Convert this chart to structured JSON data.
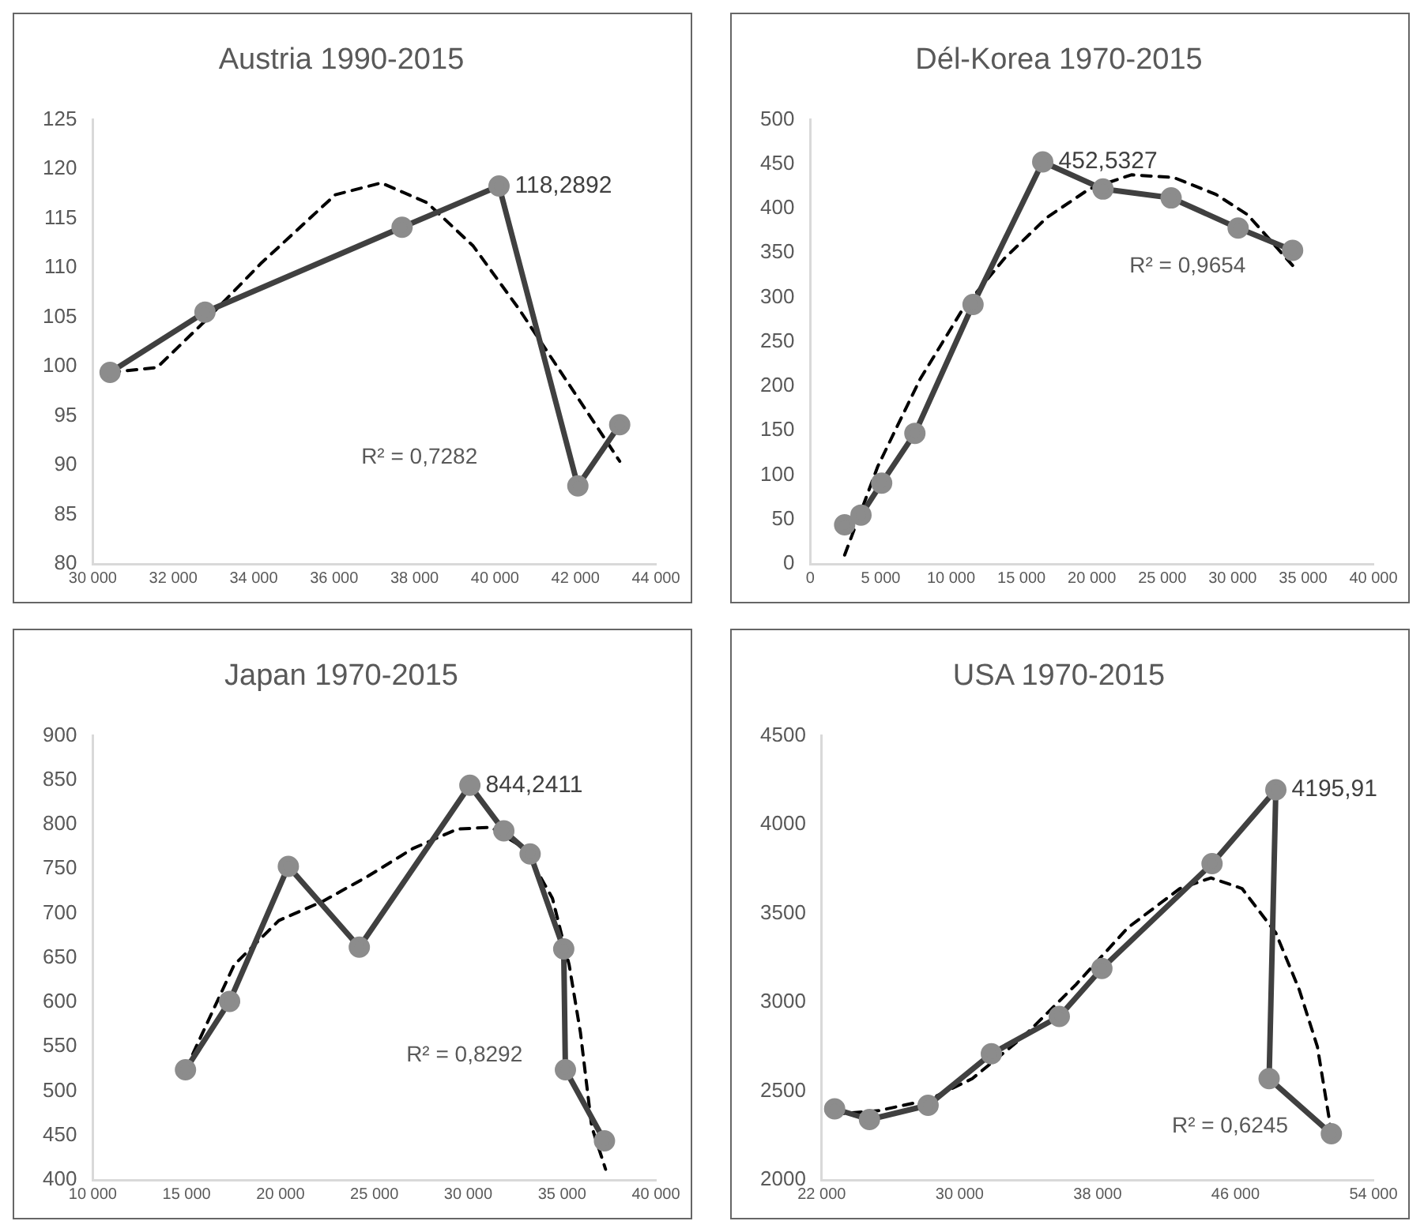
{
  "chart_data": [
    {
      "type": "line",
      "title": "Austria 1990-2015",
      "xlim": [
        30000,
        44000
      ],
      "xticks": [
        {
          "value": 30000,
          "label": "30 000"
        },
        {
          "value": 32000,
          "label": "32 000"
        },
        {
          "value": 34000,
          "label": "34 000"
        },
        {
          "value": 36000,
          "label": "36 000"
        },
        {
          "value": 38000,
          "label": "38 000"
        },
        {
          "value": 40000,
          "label": "40 000"
        },
        {
          "value": 42000,
          "label": "42 000"
        },
        {
          "value": 44000,
          "label": "44 000"
        }
      ],
      "ylim": [
        80,
        125
      ],
      "yticks": [
        80,
        85,
        90,
        95,
        100,
        105,
        110,
        115,
        120,
        125
      ],
      "grid": false,
      "legend": false,
      "annotations": [
        "R² = 0,7282"
      ],
      "series": [
        {
          "type": "line",
          "color": "#404040",
          "marker": "circle",
          "line_style": "solid",
          "x": [
            30430,
            32790,
            37690,
            40100,
            42060,
            43100
          ],
          "values": [
            99.4,
            105.5,
            114.1,
            118.2892,
            87.9,
            94.1
          ],
          "value_labels": [
            null,
            null,
            null,
            "118,2892",
            null,
            null
          ]
        },
        {
          "type": "line",
          "color": "#000000",
          "marker": "none",
          "line_style": "dashed",
          "x": [
            30430,
            31600,
            32790,
            34170,
            36030,
            37170,
            38310,
            39460,
            40600,
            41740,
            43100
          ],
          "values": [
            99.4,
            99.9,
            104.6,
            110.4,
            117.4,
            118.6,
            116.6,
            112.2,
            105.8,
            98.8,
            90.4
          ]
        }
      ]
    },
    {
      "type": "line",
      "title": "Dél-Korea 1970-2015",
      "xlim": [
        0,
        40000
      ],
      "xticks": [
        0,
        {
          "value": 5000,
          "label": "5 000"
        },
        {
          "value": 10000,
          "label": "10 000"
        },
        {
          "value": 15000,
          "label": "15 000"
        },
        {
          "value": 20000,
          "label": "20 000"
        },
        {
          "value": 25000,
          "label": "25 000"
        },
        {
          "value": 30000,
          "label": "30 000"
        },
        {
          "value": 35000,
          "label": "35 000"
        },
        {
          "value": 40000,
          "label": "40 000"
        }
      ],
      "ylim": [
        0,
        500
      ],
      "yticks": [
        0,
        50,
        100,
        150,
        200,
        250,
        300,
        350,
        400,
        450,
        500
      ],
      "grid": false,
      "legend": false,
      "annotations": [
        "R² = 0,9654"
      ],
      "series": [
        {
          "type": "line",
          "color": "#404040",
          "marker": "circle",
          "line_style": "solid",
          "x": [
            2440,
            3600,
            5070,
            7430,
            11560,
            16510,
            20790,
            25630,
            30390,
            34260
          ],
          "values": [
            44,
            55,
            91,
            147,
            292,
            452.5327,
            422,
            412,
            378,
            353
          ],
          "value_labels": [
            null,
            null,
            null,
            null,
            null,
            "452,5327",
            null,
            null,
            null,
            null
          ]
        },
        {
          "type": "line",
          "color": "#000000",
          "marker": "none",
          "line_style": "dashed",
          "x": [
            2440,
            4800,
            7800,
            10800,
            13800,
            16810,
            19810,
            22810,
            25810,
            28810,
            31070,
            34260
          ],
          "values": [
            10,
            110,
            208,
            286,
            344,
            390,
            422,
            438,
            435,
            416,
            393,
            336
          ]
        }
      ]
    },
    {
      "type": "line",
      "title": "Japan 1970-2015",
      "xlim": [
        10000,
        40000
      ],
      "xticks": [
        {
          "value": 10000,
          "label": "10 000"
        },
        {
          "value": 15000,
          "label": "15 000"
        },
        {
          "value": 20000,
          "label": "20 000"
        },
        {
          "value": 25000,
          "label": "25 000"
        },
        {
          "value": 30000,
          "label": "30 000"
        },
        {
          "value": 35000,
          "label": "35 000"
        },
        {
          "value": 40000,
          "label": "40 000"
        }
      ],
      "ylim": [
        400,
        900
      ],
      "yticks": [
        400,
        450,
        500,
        550,
        600,
        650,
        700,
        750,
        800,
        850,
        900
      ],
      "grid": false,
      "legend": false,
      "annotations": [
        "R² = 0,8292"
      ],
      "series": [
        {
          "type": "line",
          "color": "#404040",
          "marker": "circle",
          "line_style": "solid",
          "x": [
            14940,
            17290,
            20420,
            24200,
            30090,
            31900,
            33300,
            35090,
            35180,
            37260
          ],
          "values": [
            524,
            601,
            753,
            662,
            844.2411,
            793,
            767,
            660,
            524,
            444
          ],
          "value_labels": [
            null,
            null,
            null,
            null,
            "844,2411",
            null,
            null,
            null,
            null,
            null
          ]
        },
        {
          "type": "line",
          "color": "#000000",
          "marker": "none",
          "line_style": "dashed",
          "x": [
            14940,
            17530,
            19910,
            22290,
            24670,
            27050,
            29430,
            31210,
            33000,
            34490,
            35380,
            35980,
            36580,
            37320
          ],
          "values": [
            524,
            642,
            692,
            714,
            742,
            773,
            795,
            797,
            773,
            717,
            642,
            566,
            460,
            412
          ]
        }
      ]
    },
    {
      "type": "line",
      "title": "USA 1970-2015",
      "xlim": [
        22000,
        54000
      ],
      "xticks": [
        {
          "value": 22000,
          "label": "22 000"
        },
        {
          "value": 30000,
          "label": "30 000"
        },
        {
          "value": 38000,
          "label": "38 000"
        },
        {
          "value": 46000,
          "label": "46 000"
        },
        {
          "value": 54000,
          "label": "54 000"
        }
      ],
      "ylim": [
        2000,
        4500
      ],
      "yticks": [
        2000,
        2500,
        3000,
        3500,
        4000,
        4500
      ],
      "grid": false,
      "legend": false,
      "annotations": [
        "R² = 0,6245"
      ],
      "series": [
        {
          "type": "line",
          "color": "#404040",
          "marker": "circle",
          "line_style": "solid",
          "x": [
            22750,
            24770,
            28170,
            31840,
            35780,
            38250,
            44640,
            48340,
            47950,
            51560
          ],
          "values": [
            2400,
            2340,
            2420,
            2710,
            2920,
            3190,
            3780,
            4195.91,
            2570,
            2260
          ],
          "value_labels": [
            null,
            null,
            null,
            null,
            null,
            null,
            null,
            "4195,91",
            null,
            null
          ]
        },
        {
          "type": "line",
          "color": "#000000",
          "marker": "none",
          "line_style": "dashed",
          "x": [
            22750,
            25310,
            28170,
            30730,
            33740,
            36750,
            39760,
            42770,
            44580,
            46380,
            48340,
            49700,
            50750,
            51560
          ],
          "values": [
            2370,
            2390,
            2450,
            2570,
            2810,
            3100,
            3420,
            3640,
            3700,
            3640,
            3390,
            3070,
            2750,
            2270
          ]
        }
      ]
    }
  ]
}
